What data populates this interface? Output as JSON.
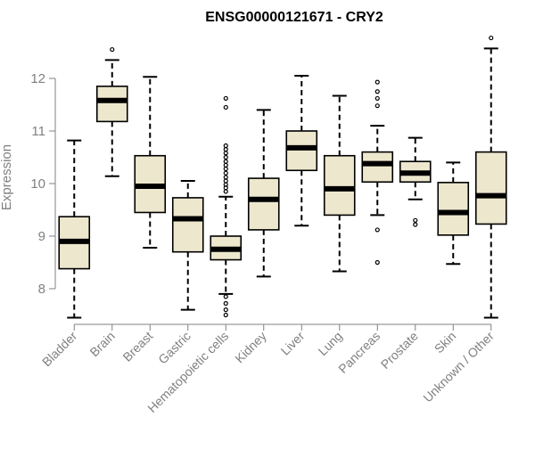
{
  "chart_data": {
    "type": "boxplot",
    "title": "ENSG00000121671 - CRY2",
    "xlabel": "",
    "ylabel": "Expression",
    "ylim": [
      7.4,
      12.8
    ],
    "yticks": [
      8,
      9,
      10,
      11,
      12
    ],
    "grid": false,
    "legend": "none",
    "colors": {
      "box_fill": "#EDE7CE",
      "stroke": "#000000",
      "axis_text": "#808080",
      "title": "#000000"
    },
    "categories": [
      "Bladder",
      "Brain",
      "Breast",
      "Gastric",
      "Hematopoietic cells",
      "Kidney",
      "Liver",
      "Lung",
      "Pancreas",
      "Prostate",
      "Skin",
      "Unknown / Other"
    ],
    "boxes": [
      {
        "category": "Bladder",
        "whisker_low": 7.45,
        "q1": 8.38,
        "median": 8.9,
        "q3": 9.37,
        "whisker_high": 10.82,
        "outliers": []
      },
      {
        "category": "Brain",
        "whisker_low": 10.14,
        "q1": 11.18,
        "median": 11.58,
        "q3": 11.85,
        "whisker_high": 12.35,
        "outliers": [
          12.55
        ]
      },
      {
        "category": "Breast",
        "whisker_low": 8.78,
        "q1": 9.45,
        "median": 9.95,
        "q3": 10.53,
        "whisker_high": 12.03,
        "outliers": []
      },
      {
        "category": "Gastric",
        "whisker_low": 7.6,
        "q1": 8.7,
        "median": 9.33,
        "q3": 9.73,
        "whisker_high": 10.05,
        "outliers": []
      },
      {
        "category": "Hematopoietic cells",
        "whisker_low": 7.9,
        "q1": 8.55,
        "median": 8.75,
        "q3": 9.0,
        "whisker_high": 9.75,
        "outliers": [
          11.62,
          11.45,
          10.72,
          10.65,
          10.58,
          10.5,
          10.42,
          10.35,
          10.28,
          10.2,
          10.12,
          10.05,
          9.98,
          9.92,
          9.85,
          7.85,
          7.72,
          7.6,
          7.5
        ]
      },
      {
        "category": "Kidney",
        "whisker_low": 8.23,
        "q1": 9.12,
        "median": 9.7,
        "q3": 10.1,
        "whisker_high": 11.4,
        "outliers": []
      },
      {
        "category": "Liver",
        "whisker_low": 9.2,
        "q1": 10.25,
        "median": 10.68,
        "q3": 11.0,
        "whisker_high": 12.05,
        "outliers": []
      },
      {
        "category": "Lung",
        "whisker_low": 8.33,
        "q1": 9.4,
        "median": 9.9,
        "q3": 10.53,
        "whisker_high": 11.67,
        "outliers": []
      },
      {
        "category": "Pancreas",
        "whisker_low": 9.4,
        "q1": 10.03,
        "median": 10.38,
        "q3": 10.6,
        "whisker_high": 11.1,
        "outliers": [
          11.93,
          11.75,
          11.62,
          11.48,
          9.12,
          8.5
        ]
      },
      {
        "category": "Prostate",
        "whisker_low": 9.7,
        "q1": 10.03,
        "median": 10.2,
        "q3": 10.42,
        "whisker_high": 10.87,
        "outliers": [
          9.3,
          9.22
        ]
      },
      {
        "category": "Skin",
        "whisker_low": 8.47,
        "q1": 9.02,
        "median": 9.45,
        "q3": 10.02,
        "whisker_high": 10.4,
        "outliers": []
      },
      {
        "category": "Unknown / Other",
        "whisker_low": 7.45,
        "q1": 9.23,
        "median": 9.77,
        "q3": 10.6,
        "whisker_high": 12.57,
        "outliers": [
          12.77
        ]
      }
    ]
  }
}
